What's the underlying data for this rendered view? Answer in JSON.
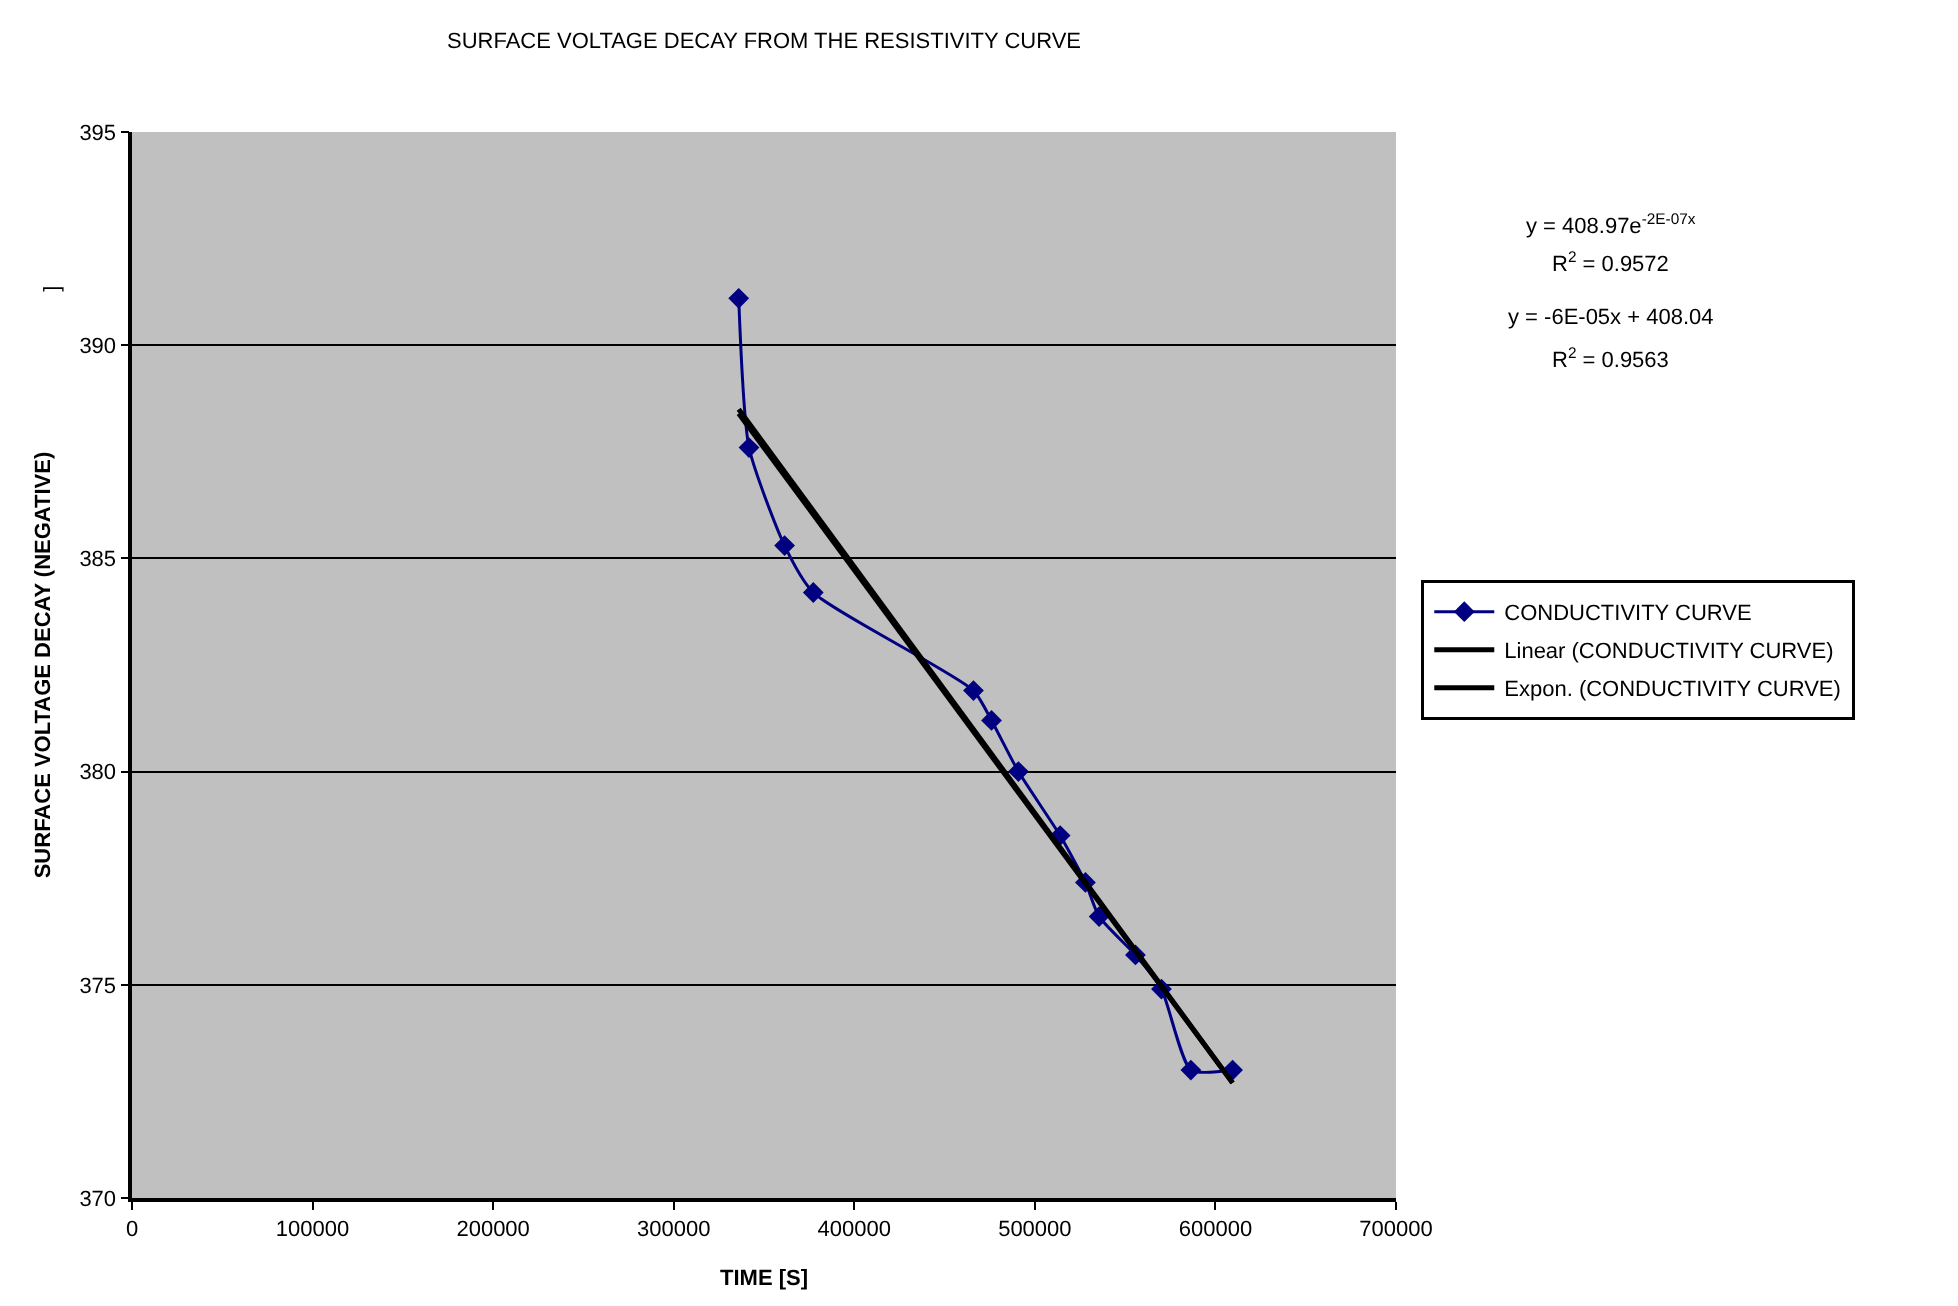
{
  "chart_data": {
    "type": "line",
    "title": "SURFACE VOLTAGE DECAY FROM THE RESISTIVITY CURVE",
    "xlabel": "TIME [S]",
    "ylabel": "SURFACE VOLTAGE DECAY (NEGATIVE)",
    "xlim": [
      0,
      700000
    ],
    "xticks": [
      0,
      100000,
      200000,
      300000,
      400000,
      500000,
      600000,
      700000
    ],
    "ylim": [
      370,
      395
    ],
    "yticks": [
      370,
      375,
      380,
      385,
      390,
      395
    ],
    "grid": "y",
    "legend": "right",
    "series": [
      {
        "name": "CONDUCTIVITY CURVE",
        "color": "#000080",
        "marker": "diamond",
        "x": [
          336000,
          341700,
          361400,
          377300,
          466000,
          476000,
          490900,
          514000,
          528000,
          535600,
          555700,
          570100,
          586400,
          609500
        ],
        "values": [
          391.1,
          387.6,
          385.3,
          384.2,
          381.9,
          381.2,
          380.0,
          378.5,
          377.4,
          376.6,
          375.7,
          374.9,
          373.0,
          373.0
        ]
      },
      {
        "name": "Linear (CONDUCTIVITY CURVE)",
        "color": "#000000",
        "marker": "none",
        "x": [
          336000,
          609500
        ],
        "values": [
          388.4,
          372.7
        ]
      },
      {
        "name": "Expon. (CONDUCTIVITY CURVE)",
        "color": "#000000",
        "marker": "none",
        "x": [
          336000,
          609500
        ],
        "values": [
          388.5,
          372.7
        ]
      }
    ],
    "annotations": [
      "y = 408.97e$^{-2E-07x}$",
      "R$^{2}$ = 0.9572",
      "y = -6E-05x + 408.04",
      "R$^{2}$ = 0.9563",
      "]"
    ]
  }
}
